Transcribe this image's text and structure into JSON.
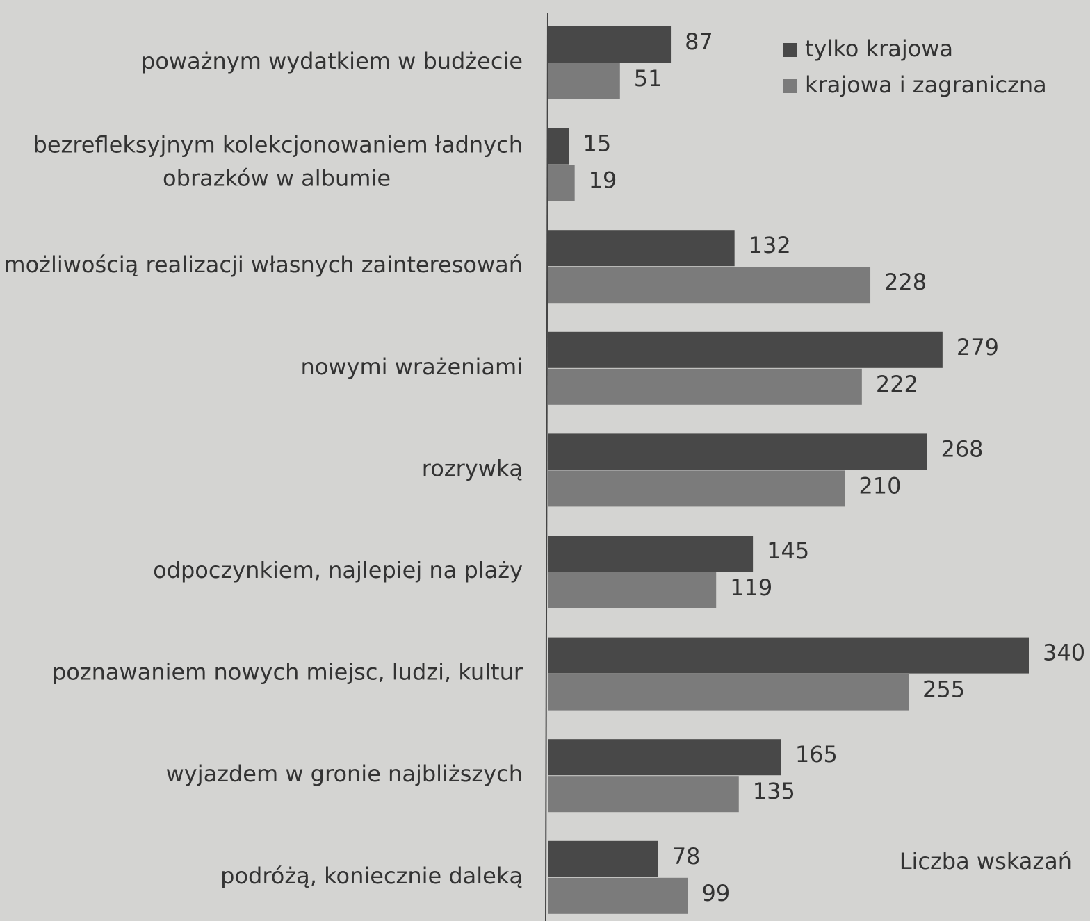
{
  "chart_data": {
    "type": "bar",
    "orientation": "horizontal",
    "categories": [
      "poważnym wydatkiem w budżecie",
      "bezrefleksyjnym kolekcjonowaniem ładnych\nobrazków w albumie",
      "możliwością realizacji własnych zainteresowań",
      "nowymi wrażeniami",
      "rozrywką",
      "odpoczynkiem, najlepiej na plaży",
      "poznawaniem nowych miejsc, ludzi, kultur",
      "wyjazdem w gronie najbliższych",
      "podróżą, koniecznie daleką"
    ],
    "series": [
      {
        "name": "tylko krajowa",
        "color": "#484848",
        "values": [
          87,
          15,
          132,
          279,
          268,
          145,
          340,
          165,
          78
        ]
      },
      {
        "name": "krajowa i zagraniczna",
        "color": "#7b7b7b",
        "values": [
          51,
          19,
          228,
          222,
          210,
          119,
          255,
          135,
          99
        ]
      }
    ],
    "annotation": "Liczba wskazań",
    "legend": "top-right"
  }
}
